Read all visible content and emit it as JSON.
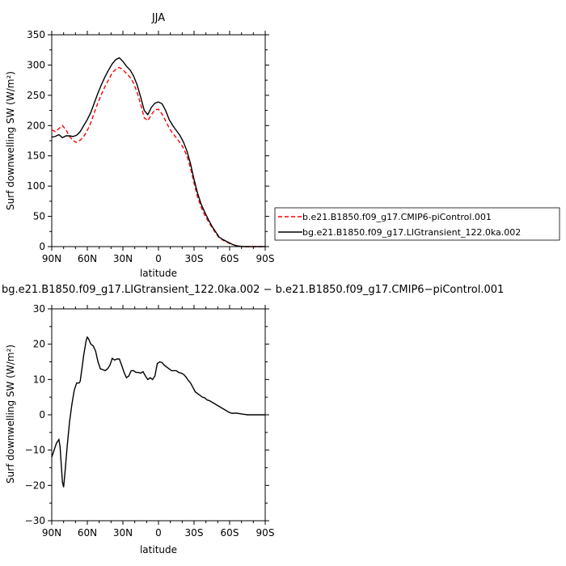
{
  "chart_data": [
    {
      "type": "line",
      "title": "JJA",
      "xlabel": "latitude",
      "ylabel": "Surf downwelling SW (W/m²)",
      "xlim": [
        90,
        -90
      ],
      "ylim": [
        0,
        350
      ],
      "xticks": [
        90,
        60,
        30,
        0,
        -30,
        -60,
        -90
      ],
      "xtick_labels": [
        "90N",
        "60N",
        "30N",
        "0",
        "30S",
        "60S",
        "90S"
      ],
      "yticks": [
        0,
        50,
        100,
        150,
        200,
        250,
        300,
        350
      ],
      "ytick_labels": [
        "0",
        "50",
        "100",
        "150",
        "200",
        "250",
        "300",
        "350"
      ],
      "legend_position": "right",
      "series": [
        {
          "name": "b.e21.B1850.f09_g17.CMIP6-piControl.001",
          "color": "#ff0000",
          "dash": "dashed",
          "x": [
            90,
            87,
            84,
            81,
            78,
            75,
            72,
            69,
            66,
            63,
            60,
            57,
            54,
            51,
            48,
            45,
            42,
            39,
            36,
            33,
            30,
            27,
            24,
            21,
            18,
            15,
            12,
            9,
            6,
            3,
            0,
            -3,
            -6,
            -9,
            -12,
            -15,
            -18,
            -21,
            -24,
            -27,
            -30,
            -33,
            -36,
            -39,
            -42,
            -45,
            -48,
            -51,
            -54,
            -57,
            -60,
            -63,
            -66,
            -69,
            -72,
            -75,
            -78,
            -81,
            -84,
            -87,
            -90
          ],
          "y": [
            193,
            190,
            195,
            200,
            193,
            182,
            175,
            172,
            176,
            182,
            192,
            205,
            222,
            238,
            252,
            265,
            276,
            287,
            293,
            296,
            292,
            286,
            280,
            270,
            255,
            235,
            213,
            208,
            218,
            226,
            227,
            219,
            208,
            196,
            187,
            180,
            172,
            163,
            150,
            130,
            105,
            82,
            65,
            52,
            42,
            32,
            23,
            15,
            11,
            8,
            5,
            3,
            1.5,
            0.5,
            0,
            0,
            0,
            0,
            0,
            0,
            0
          ]
        },
        {
          "name": "bg.e21.B1850.f09_g17.LIGtransient_122.0ka.002",
          "color": "#000000",
          "dash": "solid",
          "x": [
            90,
            87,
            84,
            81,
            78,
            75,
            72,
            69,
            66,
            63,
            60,
            57,
            54,
            51,
            48,
            45,
            42,
            39,
            36,
            33,
            30,
            27,
            24,
            21,
            18,
            15,
            12,
            9,
            6,
            3,
            0,
            -3,
            -6,
            -9,
            -12,
            -15,
            -18,
            -21,
            -24,
            -27,
            -30,
            -33,
            -36,
            -39,
            -42,
            -45,
            -48,
            -51,
            -54,
            -57,
            -60,
            -63,
            -66,
            -69,
            -72,
            -75,
            -78,
            -81,
            -84,
            -87,
            -90
          ],
          "y": [
            181,
            182,
            185,
            180,
            183,
            183,
            182,
            184,
            190,
            200,
            210,
            222,
            238,
            254,
            268,
            281,
            292,
            302,
            309,
            312,
            306,
            298,
            292,
            282,
            267,
            247,
            225,
            218,
            230,
            237,
            239,
            236,
            225,
            210,
            200,
            192,
            184,
            173,
            158,
            137,
            111,
            88,
            70,
            57,
            45,
            34,
            25,
            16,
            12,
            9,
            6,
            3,
            1.5,
            0.5,
            0,
            0,
            0,
            0,
            0,
            0,
            0
          ]
        }
      ]
    },
    {
      "type": "line",
      "title": "bg.e21.B1850.f09_g17.LIGtransient_122.0ka.002 − b.e21.B1850.f09_g17.CMIP6−piControl.001",
      "xlabel": "latitude",
      "ylabel": "Surf downwelling SW (W/m²)",
      "xlim": [
        90,
        -90
      ],
      "ylim": [
        -30,
        30
      ],
      "xticks": [
        90,
        60,
        30,
        0,
        -30,
        -60,
        -90
      ],
      "xtick_labels": [
        "90N",
        "60N",
        "30N",
        "0",
        "30S",
        "60S",
        "90S"
      ],
      "yticks": [
        -30,
        -20,
        -10,
        0,
        10,
        20,
        30
      ],
      "ytick_labels": [
        "−30",
        "−20",
        "−10",
        "0",
        "10",
        "20",
        "30"
      ],
      "series": [
        {
          "color": "#000000",
          "dash": "solid",
          "x": [
            90,
            88,
            86,
            84,
            83,
            82,
            81,
            80,
            79,
            77,
            75,
            73,
            71,
            69,
            67,
            66,
            65,
            63,
            61,
            60,
            59,
            57,
            55,
            53,
            51,
            49,
            47,
            45,
            43,
            41,
            39,
            37,
            35,
            33,
            31,
            29,
            27,
            25,
            23,
            21,
            19,
            17,
            15,
            13,
            11,
            9,
            7,
            5,
            3,
            1,
            -1,
            -3,
            -5,
            -7,
            -9,
            -11,
            -13,
            -15,
            -17,
            -19,
            -21,
            -23,
            -25,
            -27,
            -29,
            -31,
            -33,
            -35,
            -37,
            -39,
            -41,
            -43,
            -45,
            -47,
            -49,
            -51,
            -53,
            -55,
            -57,
            -59,
            -61,
            -63,
            -65,
            -67,
            -69,
            -71,
            -73,
            -75,
            -77,
            -79,
            -81,
            -83,
            -85,
            -87,
            -90
          ],
          "y": [
            -12,
            -10,
            -8,
            -7,
            -9,
            -14,
            -19,
            -20.5,
            -17,
            -9,
            -2,
            3,
            7,
            9,
            9,
            9.5,
            12,
            17,
            21,
            22,
            21.5,
            20,
            19.5,
            18,
            15,
            13,
            12.8,
            12.5,
            13,
            14,
            16,
            15.5,
            15.8,
            15.8,
            14,
            12,
            10.5,
            11,
            12.5,
            12.5,
            12,
            12,
            11.8,
            12.2,
            11,
            10,
            10.5,
            10,
            11,
            14.5,
            15,
            14.8,
            14,
            13.5,
            13,
            12.5,
            12.5,
            12.5,
            12,
            11.8,
            11.5,
            10.8,
            9.8,
            9,
            7.8,
            6.5,
            6,
            5.5,
            5,
            4.8,
            4.2,
            4,
            3.6,
            3.2,
            2.8,
            2.4,
            2,
            1.6,
            1.2,
            0.8,
            0.5,
            0.4,
            0.5,
            0.4,
            0.3,
            0.2,
            0.1,
            0.0,
            0.0,
            0.0,
            0.0,
            0.0,
            0.0,
            0.0,
            0.0
          ]
        }
      ]
    }
  ]
}
